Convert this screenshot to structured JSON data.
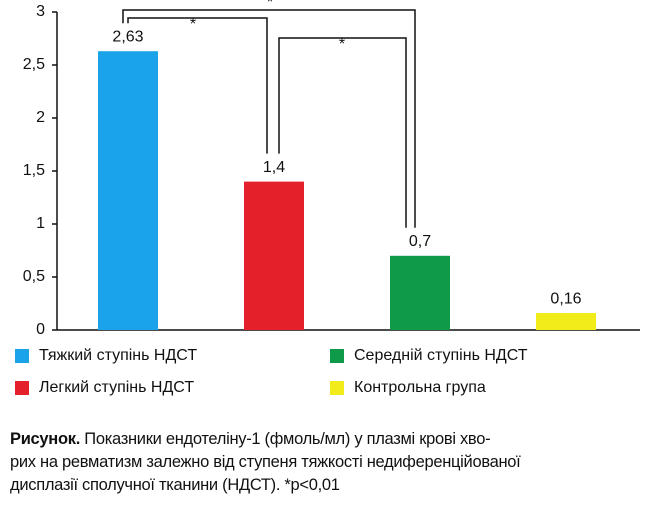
{
  "chart_data": {
    "type": "bar",
    "categories": [
      "Тяжкий ступінь НДСТ",
      "Легкий ступінь НДСТ",
      "Середній ступінь НДСТ",
      "Контрольна група"
    ],
    "values": [
      2.63,
      1.4,
      0.7,
      0.16
    ],
    "value_labels": [
      "2,63",
      "1,4",
      "0,7",
      "0,16"
    ],
    "colors": [
      "#1aa3e8",
      "#e4202a",
      "#0f9a4a",
      "#f2ec1a"
    ],
    "ylim": [
      0,
      3
    ],
    "yticks": [
      0,
      {
        "value": 0.5,
        "label": "0,5"
      },
      1,
      {
        "value": 1.5,
        "label": "1,5"
      },
      2,
      {
        "value": 2.5,
        "label": "2,5"
      },
      3
    ],
    "annotations": [
      "*",
      "*",
      "*"
    ]
  },
  "caption": {
    "label": "Рисунок.",
    "lines": [
      "Показники ендотеліну-1 (фмоль/мл) у плазмі крові хво-",
      "рих на ревматизм залежно від ступеня тяжкості недиференційованої",
      "дисплазії сполучної тканини (НДСТ). *p<0,01"
    ]
  }
}
